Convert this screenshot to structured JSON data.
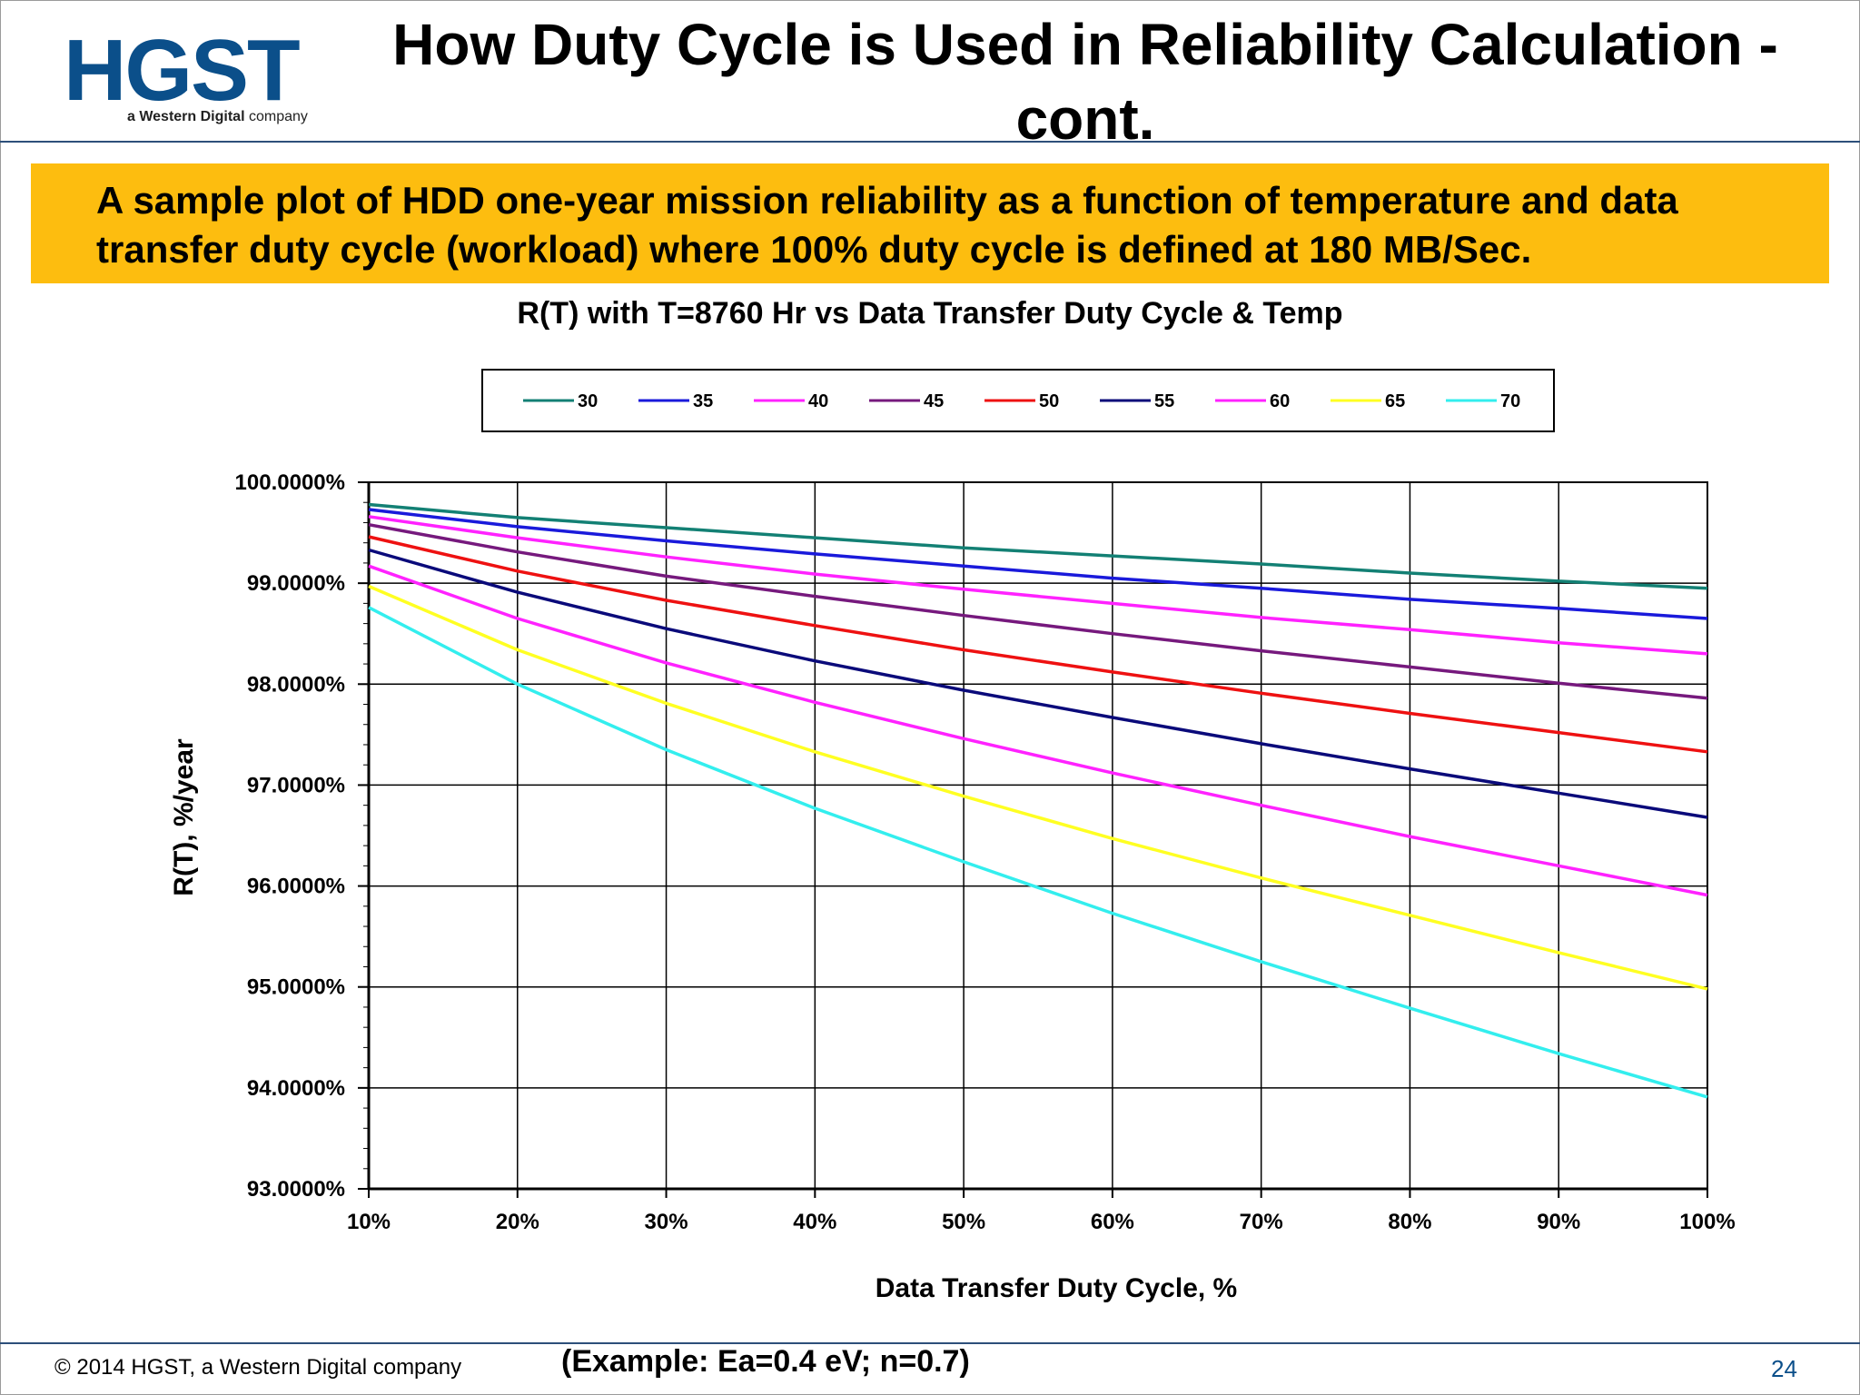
{
  "logo": {
    "word": "HGST",
    "tag_bold": "a Western Digital",
    "tag_rest": "company"
  },
  "title": "How Duty Cycle is Used in Reliability Calculation - cont.",
  "banner": "A sample plot of HDD one-year mission reliability as a function of temperature and data transfer duty cycle (workload) where 100% duty cycle is defined at 180 MB/Sec.",
  "footer": {
    "copyright": "© 2014 HGST, a Western Digital company",
    "example": "(Example: Ea=0.4 eV; n=0.7)",
    "page": "24"
  },
  "colors": {
    "logo": "#0b4f8a",
    "banner": "#fdbd0f",
    "rule": "#2d4f7a"
  },
  "chart_data": {
    "type": "line",
    "title": "R(T) with T=8760 Hr vs Data Transfer Duty Cycle & Temp",
    "xlabel": "Data Transfer Duty Cycle, %",
    "ylabel": "R(T), %/year",
    "x": [
      10,
      20,
      30,
      40,
      50,
      60,
      70,
      80,
      90,
      100
    ],
    "x_tick_labels": [
      "10%",
      "20%",
      "30%",
      "40%",
      "50%",
      "60%",
      "70%",
      "80%",
      "90%",
      "100%"
    ],
    "xlim": [
      10,
      100
    ],
    "ylim": [
      93,
      100
    ],
    "y_ticks": [
      93,
      94,
      95,
      96,
      97,
      98,
      99,
      100
    ],
    "y_tick_labels": [
      "93.0000%",
      "94.0000%",
      "95.0000%",
      "96.0000%",
      "97.0000%",
      "98.0000%",
      "99.0000%",
      "100.0000%"
    ],
    "grid": true,
    "legend": "top",
    "series": [
      {
        "name": "30",
        "color": "#138074",
        "values": [
          99.78,
          99.65,
          99.55,
          99.45,
          99.35,
          99.27,
          99.19,
          99.1,
          99.02,
          98.95
        ]
      },
      {
        "name": "35",
        "color": "#1a1adb",
        "values": [
          99.73,
          99.56,
          99.42,
          99.29,
          99.17,
          99.05,
          98.95,
          98.84,
          98.75,
          98.65
        ]
      },
      {
        "name": "40",
        "color": "#ff22ff",
        "values": [
          99.66,
          99.45,
          99.26,
          99.09,
          98.94,
          98.8,
          98.66,
          98.54,
          98.41,
          98.3
        ]
      },
      {
        "name": "45",
        "color": "#76197d",
        "values": [
          99.58,
          99.31,
          99.07,
          98.87,
          98.68,
          98.5,
          98.33,
          98.17,
          98.01,
          97.86
        ]
      },
      {
        "name": "50",
        "color": "#ee1111",
        "values": [
          99.46,
          99.12,
          98.83,
          98.58,
          98.34,
          98.12,
          97.91,
          97.71,
          97.52,
          97.33
        ]
      },
      {
        "name": "55",
        "color": "#0a0a7a",
        "values": [
          99.33,
          98.91,
          98.55,
          98.23,
          97.94,
          97.67,
          97.41,
          97.16,
          96.92,
          96.68
        ]
      },
      {
        "name": "60",
        "color": "#ff22ff",
        "values": [
          99.17,
          98.65,
          98.21,
          97.82,
          97.46,
          97.12,
          96.8,
          96.49,
          96.2,
          95.91
        ]
      },
      {
        "name": "65",
        "color": "#ffff22",
        "values": [
          98.97,
          98.34,
          97.81,
          97.33,
          96.89,
          96.47,
          96.08,
          95.71,
          95.34,
          94.98
        ]
      },
      {
        "name": "70",
        "color": "#33eeee",
        "values": [
          98.76,
          98.0,
          97.35,
          96.77,
          96.24,
          95.73,
          95.25,
          94.79,
          94.34,
          93.91
        ]
      }
    ]
  }
}
